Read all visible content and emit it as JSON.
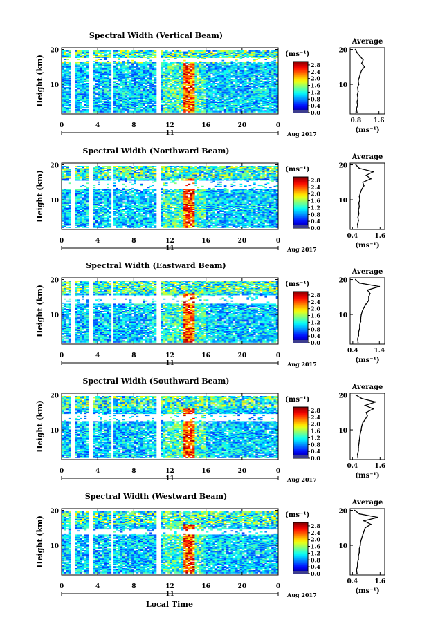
{
  "page": {
    "xlabel": "Local Time",
    "date_label": "Aug 2017"
  },
  "chart_data": [
    {
      "type": "heatmap",
      "title": "Spectral Width (Vertical Beam)",
      "ylabel": "Height (km)",
      "x_ticks": [
        "0",
        "4",
        "8",
        "12",
        "16",
        "20",
        "0"
      ],
      "y_ticks": [
        "20",
        "10"
      ],
      "xlim": [
        0,
        24
      ],
      "ylim": [
        1.5,
        20.5
      ],
      "day_label": "11",
      "date_label": "Aug 2017",
      "colorbar": {
        "unit": "(ms⁻¹)",
        "ticks": [
          "2.8",
          "2.4",
          "2.0",
          "1.6",
          "1.2",
          "0.8",
          "0.4",
          "0.0"
        ],
        "range": [
          0,
          3.0
        ]
      },
      "data_gaps_hours": [
        [
          1.0,
          1.6
        ],
        [
          3.1,
          3.4
        ],
        [
          5.5,
          5.8
        ],
        [
          10.4,
          11.0
        ],
        [
          17.9,
          18.1
        ]
      ],
      "white_band_km": [
        16.3,
        17.5
      ],
      "high_width_core_hours": [
        13.3,
        14.5
      ],
      "profile": {
        "title": "Average",
        "xlabel": "(ms⁻¹)",
        "x_ticks": [
          "0.8",
          "1.6"
        ],
        "xlim": [
          0.6,
          1.8
        ],
        "y_ticks": [
          "20",
          "10"
        ],
        "height_km": [
          20,
          19,
          18,
          17,
          16,
          15,
          14,
          13,
          12,
          11,
          10,
          9,
          8,
          7,
          6,
          5,
          4,
          3,
          2
        ],
        "values": [
          0.78,
          0.85,
          0.95,
          1.05,
          1.0,
          1.1,
          1.0,
          0.95,
          0.92,
          0.88,
          0.9,
          0.86,
          0.88,
          0.85,
          0.87,
          0.84,
          0.86,
          0.82,
          0.84
        ]
      }
    },
    {
      "type": "heatmap",
      "title": "Spectral Width (Northward Beam)",
      "ylabel": "Height (km)",
      "x_ticks": [
        "0",
        "4",
        "8",
        "12",
        "16",
        "20",
        "0"
      ],
      "y_ticks": [
        "20",
        "10"
      ],
      "xlim": [
        0,
        24
      ],
      "ylim": [
        1.5,
        20.5
      ],
      "day_label": "11",
      "date_label": "Aug 2017",
      "colorbar": {
        "unit": "(ms⁻¹)",
        "ticks": [
          "2.8",
          "2.4",
          "2.0",
          "1.6",
          "1.2",
          "0.8",
          "0.4",
          "0.0"
        ],
        "range": [
          0,
          3.0
        ]
      },
      "data_gaps_hours": [
        [
          1.0,
          1.6
        ],
        [
          3.1,
          3.4
        ],
        [
          5.5,
          5.8
        ],
        [
          10.4,
          11.0
        ],
        [
          17.9,
          18.1
        ]
      ],
      "white_band_km": [
        13.0,
        15.5
      ],
      "high_width_core_hours": [
        13.4,
        14.6
      ],
      "profile": {
        "title": "Average",
        "xlabel": "(ms⁻¹)",
        "x_ticks": [
          "0.4",
          "1.6"
        ],
        "xlim": [
          0.3,
          1.8
        ],
        "y_ticks": [
          "20",
          "10"
        ],
        "height_km": [
          20,
          19,
          18,
          17,
          16,
          15,
          14,
          13,
          12,
          11,
          10,
          9,
          8,
          7,
          6,
          5,
          4,
          3,
          2
        ],
        "values": [
          0.55,
          0.7,
          1.3,
          1.0,
          1.2,
          0.85,
          0.9,
          0.8,
          0.75,
          0.7,
          0.72,
          0.68,
          0.7,
          0.66,
          0.68,
          0.64,
          0.66,
          0.62,
          0.64
        ]
      }
    },
    {
      "type": "heatmap",
      "title": "Spectral Width (Eastward Beam)",
      "ylabel": "Height (km)",
      "x_ticks": [
        "0",
        "4",
        "8",
        "12",
        "16",
        "20",
        "0"
      ],
      "y_ticks": [
        "20",
        "10"
      ],
      "xlim": [
        0,
        24
      ],
      "ylim": [
        1.5,
        20.5
      ],
      "day_label": "11",
      "date_label": "Aug 2017",
      "colorbar": {
        "unit": "(ms⁻¹)",
        "ticks": [
          "2.8",
          "2.4",
          "2.0",
          "1.6",
          "1.2",
          "0.8",
          "0.4",
          "0.0"
        ],
        "range": [
          0,
          3.0
        ]
      },
      "data_gaps_hours": [
        [
          1.0,
          1.6
        ],
        [
          3.1,
          3.4
        ],
        [
          5.5,
          5.8
        ],
        [
          10.4,
          11.0
        ],
        [
          17.9,
          18.1
        ]
      ],
      "white_band_km": [
        13.0,
        15.5
      ],
      "high_width_core_hours": [
        13.3,
        14.5
      ],
      "profile": {
        "title": "Average",
        "xlabel": "(ms⁻¹)",
        "x_ticks": [
          "0.4",
          "1.4"
        ],
        "xlim": [
          0.3,
          1.6
        ],
        "y_ticks": [
          "20",
          "10"
        ],
        "height_km": [
          20,
          19,
          18,
          17,
          16,
          15,
          14,
          13,
          12,
          11,
          10,
          9,
          8,
          7,
          6,
          5,
          4,
          3,
          2
        ],
        "values": [
          0.5,
          0.65,
          1.4,
          0.95,
          1.05,
          1.0,
          1.0,
          0.9,
          0.82,
          0.76,
          0.72,
          0.7,
          0.7,
          0.66,
          0.66,
          0.62,
          0.62,
          0.58,
          0.6
        ]
      }
    },
    {
      "type": "heatmap",
      "title": "Spectral Width (Southward Beam)",
      "ylabel": "Height (km)",
      "x_ticks": [
        "0",
        "4",
        "8",
        "12",
        "16",
        "20",
        "0"
      ],
      "y_ticks": [
        "20",
        "10"
      ],
      "xlim": [
        0,
        24
      ],
      "ylim": [
        1.5,
        20.5
      ],
      "day_label": "11",
      "date_label": "Aug 2017",
      "colorbar": {
        "unit": "(ms⁻¹)",
        "ticks": [
          "2.8",
          "2.4",
          "2.0",
          "1.6",
          "1.2",
          "0.8",
          "0.4",
          "0.0"
        ],
        "range": [
          0,
          3.0
        ]
      },
      "data_gaps_hours": [
        [
          1.0,
          1.6
        ],
        [
          3.1,
          3.4
        ],
        [
          5.5,
          5.8
        ],
        [
          10.4,
          11.0
        ],
        [
          17.9,
          18.1
        ]
      ],
      "white_band_km": [
        12.5,
        14.5
      ],
      "high_width_core_hours": [
        13.3,
        14.6
      ],
      "profile": {
        "title": "Average",
        "xlabel": "(ms⁻¹)",
        "x_ticks": [
          "0.4",
          "1.6"
        ],
        "xlim": [
          0.3,
          1.8
        ],
        "y_ticks": [
          "20",
          "10"
        ],
        "height_km": [
          20,
          19,
          18,
          17,
          16,
          15,
          14,
          13,
          12,
          11,
          10,
          9,
          8,
          7,
          6,
          5,
          4,
          3,
          2
        ],
        "values": [
          0.55,
          0.8,
          1.4,
          0.95,
          1.3,
          1.0,
          1.05,
          0.95,
          0.85,
          0.8,
          0.78,
          0.74,
          0.72,
          0.7,
          0.68,
          0.66,
          0.66,
          0.62,
          0.64
        ]
      }
    },
    {
      "type": "heatmap",
      "title": "Spectral Width (Westward Beam)",
      "ylabel": "Height (km)",
      "x_ticks": [
        "0",
        "4",
        "8",
        "12",
        "16",
        "20",
        "0"
      ],
      "y_ticks": [
        "20",
        "10"
      ],
      "xlim": [
        0,
        24
      ],
      "ylim": [
        1.5,
        20.5
      ],
      "day_label": "11",
      "date_label": "Aug 2017",
      "colorbar": {
        "unit": "(ms⁻¹)",
        "ticks": [
          "2.8",
          "2.4",
          "2.0",
          "1.6",
          "1.2",
          "0.8",
          "0.4",
          "0.0"
        ],
        "range": [
          0,
          3.0
        ]
      },
      "data_gaps_hours": [
        [
          1.0,
          1.6
        ],
        [
          3.1,
          3.4
        ],
        [
          5.5,
          5.8
        ],
        [
          10.4,
          11.0
        ],
        [
          17.9,
          18.1
        ]
      ],
      "white_band_km": [
        13.0,
        14.5
      ],
      "high_width_core_hours": [
        13.4,
        14.6
      ],
      "profile": {
        "title": "Average",
        "xlabel": "(ms⁻¹)",
        "x_ticks": [
          "0.4",
          "1.6"
        ],
        "xlim": [
          0.3,
          1.8
        ],
        "y_ticks": [
          "20",
          "10"
        ],
        "height_km": [
          20,
          19,
          18,
          17,
          16,
          15,
          14,
          13,
          12,
          11,
          10,
          9,
          8,
          7,
          6,
          5,
          4,
          3,
          2
        ],
        "values": [
          0.5,
          0.7,
          1.5,
          0.9,
          1.2,
          0.95,
          0.9,
          0.85,
          0.8,
          0.76,
          0.74,
          0.7,
          0.7,
          0.66,
          0.66,
          0.62,
          0.62,
          0.58,
          0.6
        ]
      }
    }
  ]
}
